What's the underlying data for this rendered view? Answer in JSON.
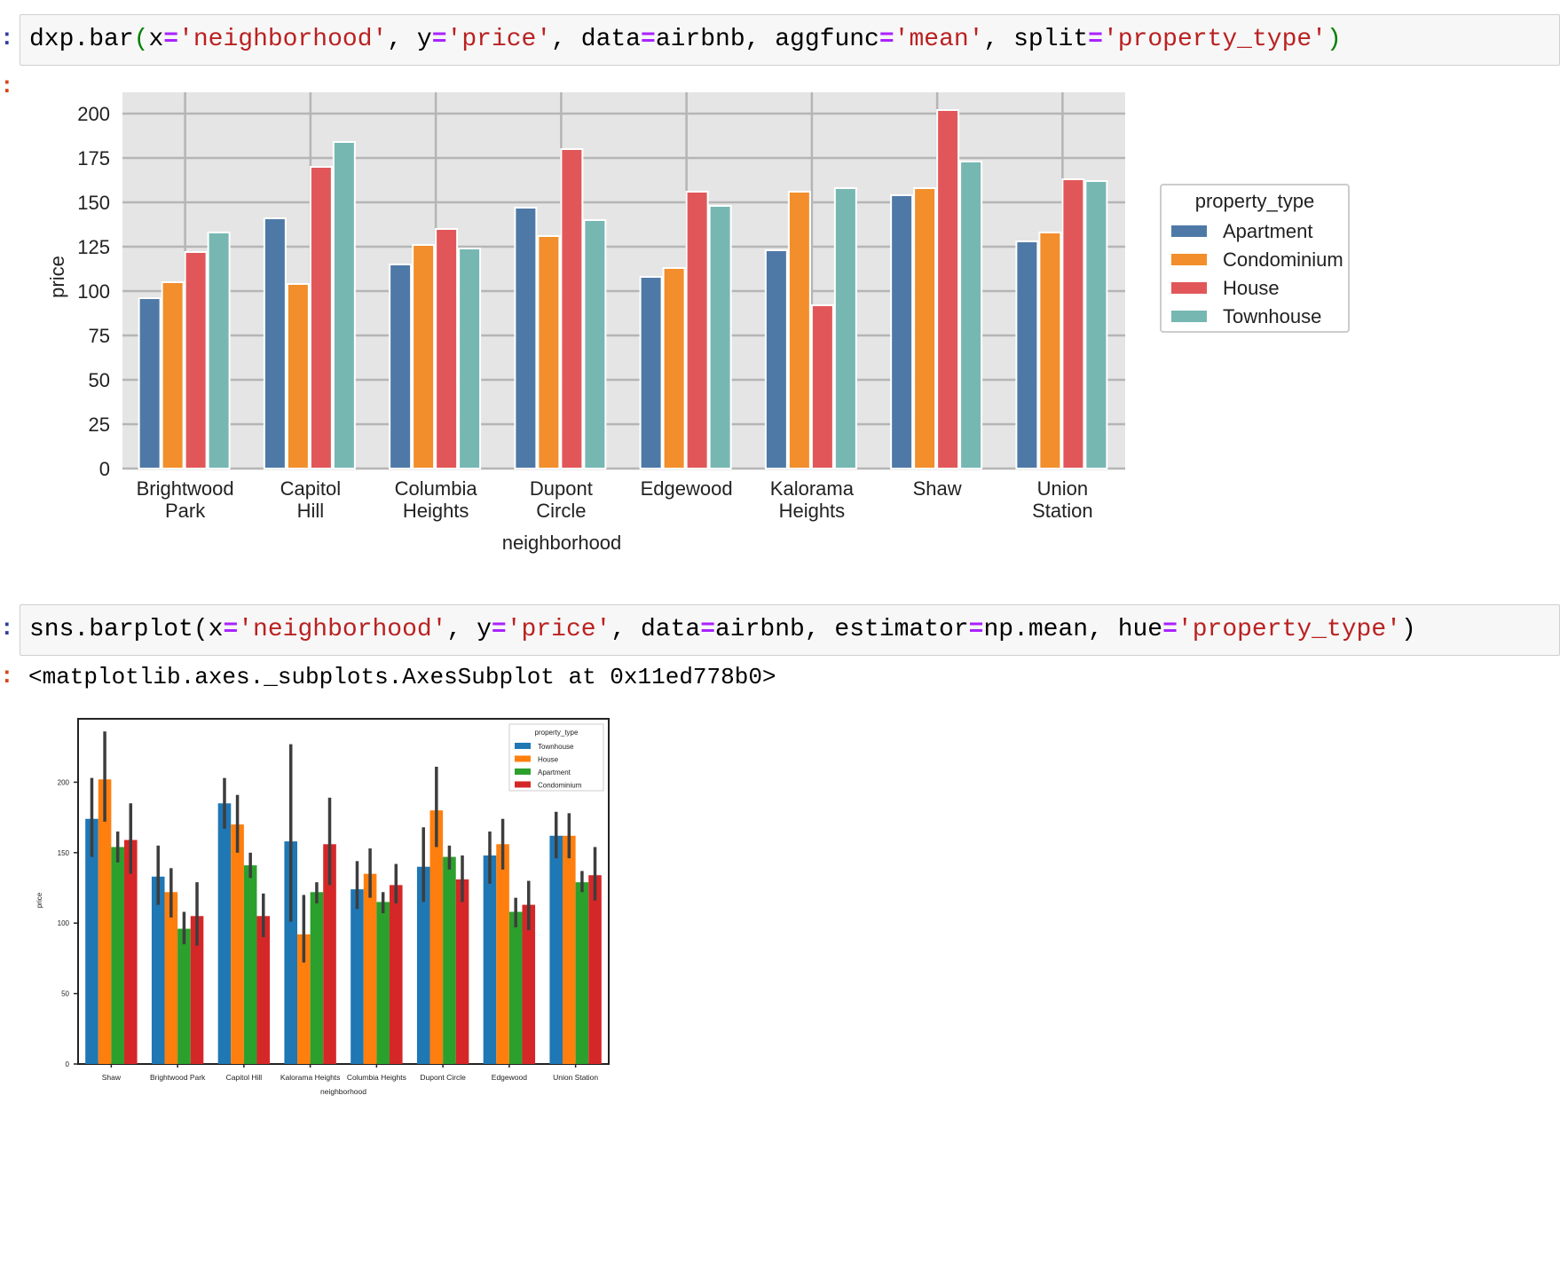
{
  "cell1": {
    "code_tokens": [
      {
        "t": "dxp.bar",
        "c": "kw"
      },
      {
        "t": "(",
        "c": "par-g"
      },
      {
        "t": "x",
        "c": "kw"
      },
      {
        "t": "=",
        "c": "op"
      },
      {
        "t": "'neighborhood'",
        "c": "str"
      },
      {
        "t": ", y",
        "c": "kw"
      },
      {
        "t": "=",
        "c": "op"
      },
      {
        "t": "'price'",
        "c": "str"
      },
      {
        "t": ", data",
        "c": "kw"
      },
      {
        "t": "=",
        "c": "op"
      },
      {
        "t": "airbnb, aggfunc",
        "c": "kw"
      },
      {
        "t": "=",
        "c": "op"
      },
      {
        "t": "'mean'",
        "c": "str"
      },
      {
        "t": ", split",
        "c": "kw"
      },
      {
        "t": "=",
        "c": "op"
      },
      {
        "t": "'property_type'",
        "c": "str"
      },
      {
        "t": ")",
        "c": "par-g"
      }
    ],
    "prompt_in": ":",
    "prompt_out": ":"
  },
  "cell2": {
    "code_tokens": [
      {
        "t": "sns.barplot(x",
        "c": "kw"
      },
      {
        "t": "=",
        "c": "op"
      },
      {
        "t": "'neighborhood'",
        "c": "str"
      },
      {
        "t": ", y",
        "c": "kw"
      },
      {
        "t": "=",
        "c": "op"
      },
      {
        "t": "'price'",
        "c": "str"
      },
      {
        "t": ", data",
        "c": "kw"
      },
      {
        "t": "=",
        "c": "op"
      },
      {
        "t": "airbnb, estimator",
        "c": "kw"
      },
      {
        "t": "=",
        "c": "op"
      },
      {
        "t": "np.mean, hue",
        "c": "kw"
      },
      {
        "t": "=",
        "c": "op"
      },
      {
        "t": "'property_type'",
        "c": "str"
      },
      {
        "t": ")",
        "c": "kw"
      }
    ],
    "prompt_in": ":",
    "prompt_out": ":",
    "output_text": "<matplotlib.axes._subplots.AxesSubplot at 0x11ed778b0>"
  },
  "chart_data": [
    {
      "type": "bar",
      "categories": [
        "Brightwood\nPark",
        "Capitol\nHill",
        "Columbia\nHeights",
        "Dupont\nCircle",
        "Edgewood",
        "Kalorama\nHeights",
        "Shaw",
        "Union\nStation"
      ],
      "series": [
        {
          "name": "Apartment",
          "color": "#4e79a7",
          "values": [
            96,
            141,
            115,
            147,
            108,
            123,
            154,
            128
          ]
        },
        {
          "name": "Condominium",
          "color": "#f28e2b",
          "values": [
            105,
            104,
            126,
            131,
            113,
            156,
            158,
            133
          ]
        },
        {
          "name": "House",
          "color": "#e15759",
          "values": [
            122,
            170,
            135,
            180,
            156,
            92,
            202,
            163
          ]
        },
        {
          "name": "Townhouse",
          "color": "#76b7b2",
          "values": [
            133,
            184,
            124,
            140,
            148,
            158,
            173,
            162
          ]
        }
      ],
      "xlabel": "neighborhood",
      "ylabel": "price",
      "ylim": [
        0,
        212
      ],
      "yticks": [
        0,
        25,
        50,
        75,
        100,
        125,
        150,
        175,
        200
      ],
      "legend_title": "property_type",
      "legend_position": "right",
      "grid": true
    },
    {
      "type": "bar",
      "categories": [
        "Shaw",
        "Brightwood Park",
        "Capitol Hill",
        "Kalorama Heights",
        "Columbia Heights",
        "Dupont Circle",
        "Edgewood",
        "Union Station"
      ],
      "series": [
        {
          "name": "Townhouse",
          "color": "#1f77b4",
          "values": [
            174,
            133,
            185,
            158,
            124,
            140,
            148,
            162
          ],
          "err_low": [
            147,
            113,
            167,
            101,
            110,
            115,
            128,
            146
          ],
          "err_high": [
            203,
            155,
            203,
            227,
            144,
            168,
            165,
            179
          ]
        },
        {
          "name": "House",
          "color": "#ff7f0e",
          "values": [
            202,
            122,
            170,
            92,
            135,
            180,
            156,
            162
          ],
          "err_low": [
            172,
            104,
            150,
            72,
            118,
            154,
            138,
            146
          ],
          "err_high": [
            236,
            139,
            191,
            120,
            153,
            211,
            174,
            178
          ]
        },
        {
          "name": "Apartment",
          "color": "#2ca02c",
          "values": [
            154,
            96,
            141,
            122,
            115,
            147,
            108,
            129
          ],
          "err_low": [
            143,
            85,
            132,
            114,
            107,
            138,
            97,
            122
          ],
          "err_high": [
            165,
            108,
            150,
            129,
            122,
            155,
            118,
            137
          ]
        },
        {
          "name": "Condominium",
          "color": "#d62728",
          "values": [
            159,
            105,
            105,
            156,
            127,
            131,
            113,
            134
          ],
          "err_low": [
            135,
            84,
            90,
            127,
            114,
            115,
            95,
            116
          ],
          "err_high": [
            185,
            129,
            121,
            189,
            142,
            148,
            130,
            154
          ]
        }
      ],
      "xlabel": "neighborhood",
      "ylabel": "price",
      "ylim": [
        0,
        245
      ],
      "yticks": [
        0,
        50,
        100,
        150,
        200
      ],
      "legend_title": "property_type",
      "legend_position": "top-right",
      "grid": false
    }
  ]
}
